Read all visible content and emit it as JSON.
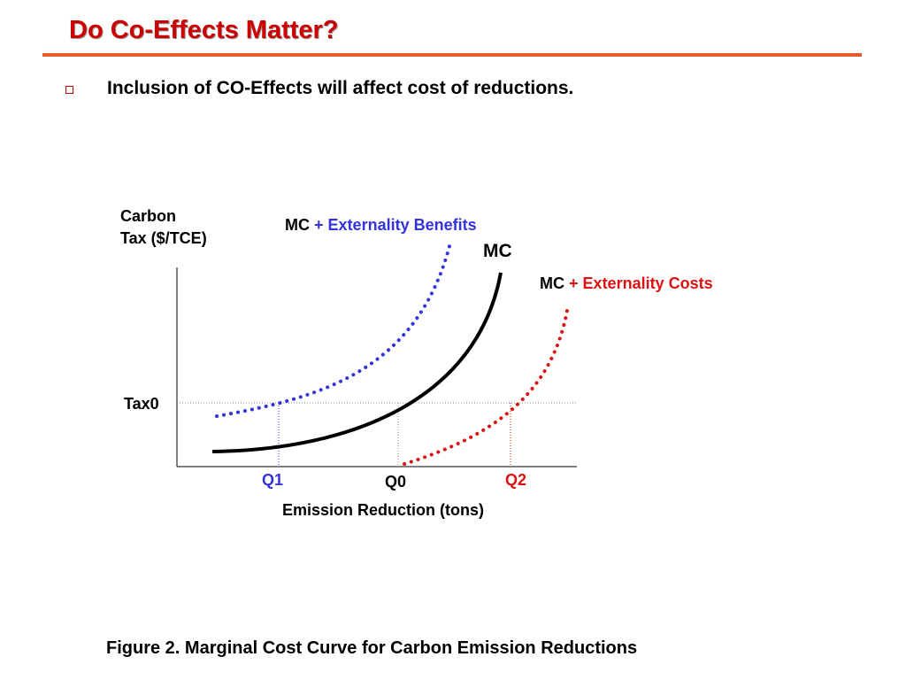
{
  "slide": {
    "title": "Do Co-Effects Matter?",
    "bullet": "Inclusion of CO-Effects will affect cost of reductions.",
    "caption": "Figure 2. Marginal Cost Curve for Carbon Emission Reductions"
  },
  "diagram": {
    "y_axis_label_line1": "Carbon",
    "y_axis_label_line2": "Tax ($/TCE)",
    "x_axis_label": "Emission Reduction (tons)",
    "tax_label": "Tax0",
    "mc_label": "MC",
    "benefits_label_mc": "MC",
    "benefits_label_plus": "+",
    "benefits_label_text": "Externality Benefits",
    "costs_label_mc": "MC",
    "costs_label_plus": "+",
    "costs_label_text": "Externality Costs",
    "q1_label": "Q1",
    "q0_label": "Q0",
    "q2_label": "Q2"
  },
  "colors": {
    "title": "#cc0000",
    "rule": "#e85c2c",
    "bullet_box": "#cc0000",
    "benefits": "#3333dd",
    "costs": "#dd1111",
    "mc": "#000000",
    "guide": "#888888"
  }
}
